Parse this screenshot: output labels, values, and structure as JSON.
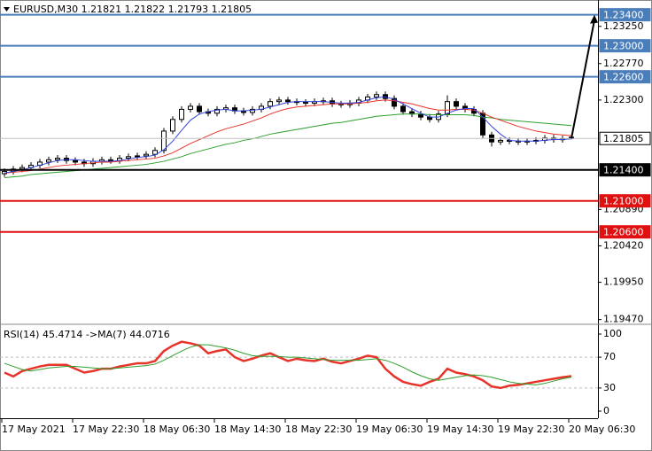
{
  "chart_data": [
    {
      "type": "candlestick",
      "title": "EURUSD,M30  1.21821 1.21822 1.21793 1.21805",
      "ylim": [
        1.1942,
        1.2359
      ],
      "yticks": [
        {
          "value": 1.2325,
          "label": "1.23250"
        },
        {
          "value": 1.2277,
          "label": "1.22770"
        },
        {
          "value": 1.223,
          "label": "1.22300"
        },
        {
          "value": 1.2089,
          "label": "1.20890"
        },
        {
          "value": 1.2042,
          "label": "1.20420"
        },
        {
          "value": 1.1995,
          "label": "1.19950"
        },
        {
          "value": 1.1947,
          "label": "1.19470"
        }
      ],
      "open": [
        1.2135,
        1.2138,
        1.2141,
        1.2143,
        1.2146,
        1.215,
        1.2153,
        1.2155,
        1.2152,
        1.215,
        1.2148,
        1.2151,
        1.2153,
        1.2152,
        1.2155,
        1.2157,
        1.2158,
        1.216,
        1.2165,
        1.219,
        1.2205,
        1.2218,
        1.2222,
        1.2215,
        1.2213,
        1.2218,
        1.222,
        1.2216,
        1.2214,
        1.2218,
        1.2222,
        1.2228,
        1.223,
        1.2228,
        1.2227,
        1.2226,
        1.2228,
        1.2229,
        1.2225,
        1.2224,
        1.2226,
        1.223,
        1.2234,
        1.2237,
        1.2232,
        1.2222,
        1.2215,
        1.2212,
        1.2208,
        1.2205,
        1.2212,
        1.2228,
        1.2222,
        1.2218,
        1.2213,
        1.2185,
        1.2176,
        1.2178,
        1.2177,
        1.2176,
        1.2177,
        1.2178,
        1.2181,
        1.2179,
        1.21821
      ],
      "high": [
        1.2142,
        1.2145,
        1.2147,
        1.215,
        1.2154,
        1.2157,
        1.2159,
        1.2159,
        1.2156,
        1.2154,
        1.2155,
        1.2157,
        1.2157,
        1.2159,
        1.2161,
        1.2162,
        1.2164,
        1.2169,
        1.2194,
        1.2209,
        1.2222,
        1.2226,
        1.2226,
        1.2219,
        1.2222,
        1.2224,
        1.2224,
        1.222,
        1.2222,
        1.2226,
        1.2232,
        1.2234,
        1.2234,
        1.2232,
        1.2231,
        1.2232,
        1.2233,
        1.2233,
        1.2229,
        1.223,
        1.2234,
        1.2238,
        1.2241,
        1.2241,
        1.2236,
        1.2226,
        1.2219,
        1.2216,
        1.2212,
        1.2216,
        1.2236,
        1.2232,
        1.2226,
        1.2222,
        1.2217,
        1.2189,
        1.2182,
        1.2182,
        1.2181,
        1.2181,
        1.2182,
        1.2185,
        1.2185,
        1.2184,
        1.21822
      ],
      "low": [
        1.2131,
        1.2134,
        1.2137,
        1.2139,
        1.2142,
        1.2146,
        1.2149,
        1.2148,
        1.2146,
        1.2144,
        1.2144,
        1.2147,
        1.2148,
        1.2148,
        1.2151,
        1.2153,
        1.2154,
        1.2156,
        1.2161,
        1.2186,
        1.2201,
        1.2214,
        1.2211,
        1.2209,
        1.2209,
        1.2214,
        1.2212,
        1.221,
        1.221,
        1.2214,
        1.2218,
        1.2224,
        1.2224,
        1.2223,
        1.2222,
        1.2222,
        1.2224,
        1.2221,
        1.222,
        1.222,
        1.2222,
        1.2226,
        1.223,
        1.2228,
        1.2218,
        1.2211,
        1.2208,
        1.2204,
        1.2201,
        1.2201,
        1.2208,
        1.2218,
        1.2214,
        1.2209,
        1.2181,
        1.217,
        1.2172,
        1.2173,
        1.2172,
        1.2172,
        1.2173,
        1.2174,
        1.2175,
        1.2175,
        1.21793
      ],
      "close": [
        1.2138,
        1.2141,
        1.2143,
        1.2146,
        1.215,
        1.2153,
        1.2155,
        1.2152,
        1.215,
        1.2148,
        1.2151,
        1.2153,
        1.2152,
        1.2155,
        1.2157,
        1.2158,
        1.216,
        1.2165,
        1.219,
        1.2205,
        1.2218,
        1.2222,
        1.2215,
        1.2213,
        1.2218,
        1.222,
        1.2216,
        1.2214,
        1.2218,
        1.2222,
        1.2228,
        1.223,
        1.2228,
        1.2227,
        1.2226,
        1.2228,
        1.2229,
        1.2225,
        1.2224,
        1.2226,
        1.223,
        1.2234,
        1.2237,
        1.2232,
        1.2222,
        1.2215,
        1.2212,
        1.2208,
        1.2205,
        1.2212,
        1.2228,
        1.2222,
        1.2218,
        1.2213,
        1.2185,
        1.2176,
        1.2178,
        1.2177,
        1.2176,
        1.2177,
        1.2178,
        1.2181,
        1.2179,
        1.218,
        1.21805
      ],
      "series": [
        {
          "color": "#2e9e2e",
          "values": [
            1.213,
            1.2131,
            1.2132,
            1.2134,
            1.2135,
            1.2136,
            1.2137,
            1.2138,
            1.2139,
            1.214,
            1.2141,
            1.2142,
            1.2143,
            1.2144,
            1.2145,
            1.2146,
            1.2147,
            1.2149,
            1.2151,
            1.2154,
            1.2157,
            1.2161,
            1.2164,
            1.2167,
            1.217,
            1.2173,
            1.2175,
            1.2178,
            1.218,
            1.2183,
            1.2186,
            1.2188,
            1.219,
            1.2192,
            1.2194,
            1.2196,
            1.2198,
            1.22,
            1.2201,
            1.2203,
            1.2205,
            1.2207,
            1.2209,
            1.221,
            1.2211,
            1.2212,
            1.2212,
            1.2212,
            1.2211,
            1.2211,
            1.2211,
            1.2211,
            1.2211,
            1.221,
            1.2208,
            1.2207,
            1.2205,
            1.2204,
            1.2203,
            1.2202,
            1.2201,
            1.22,
            1.2199,
            1.2198,
            1.2197
          ]
        },
        {
          "color": "#e8332a",
          "values": [
            1.2136,
            1.2137,
            1.2138,
            1.2139,
            1.2141,
            1.2143,
            1.2145,
            1.2146,
            1.2147,
            1.2148,
            1.2149,
            1.215,
            1.215,
            1.2151,
            1.2152,
            1.2153,
            1.2154,
            1.2155,
            1.2158,
            1.2162,
            1.2168,
            1.2174,
            1.2179,
            1.2184,
            1.2189,
            1.2193,
            1.2196,
            1.2199,
            1.2203,
            1.2207,
            1.2212,
            1.2216,
            1.2219,
            1.2221,
            1.2222,
            1.2223,
            1.2224,
            1.2225,
            1.2225,
            1.2225,
            1.2226,
            1.2227,
            1.2229,
            1.223,
            1.2229,
            1.2227,
            1.2225,
            1.2222,
            1.2219,
            1.2217,
            1.2217,
            1.2218,
            1.2218,
            1.2217,
            1.2213,
            1.2208,
            1.2204,
            1.22,
            1.2196,
            1.2193,
            1.219,
            1.2188,
            1.2186,
            1.2185,
            1.2184
          ]
        },
        {
          "color": "#3344dd",
          "values": [
            1.2136,
            1.2138,
            1.214,
            1.2143,
            1.2146,
            1.2149,
            1.2152,
            1.2153,
            1.2153,
            1.2152,
            1.2151,
            1.2151,
            1.2151,
            1.2152,
            1.2154,
            1.2156,
            1.2157,
            1.2159,
            1.2166,
            1.2177,
            1.2191,
            1.2204,
            1.2212,
            1.2215,
            1.2217,
            1.2218,
            1.2216,
            1.2216,
            1.2217,
            1.2218,
            1.2221,
            1.2224,
            1.2227,
            1.2228,
            1.2228,
            1.2228,
            1.2228,
            1.2227,
            1.2226,
            1.2226,
            1.2227,
            1.223,
            1.2233,
            1.2234,
            1.2231,
            1.2225,
            1.2219,
            1.2213,
            1.2208,
            1.2208,
            1.2213,
            1.2217,
            1.2219,
            1.2219,
            1.2208,
            1.2196,
            1.2186,
            1.2178,
            1.2177,
            1.2177,
            1.2177,
            1.2178,
            1.2179,
            1.2179,
            1.218
          ]
        }
      ],
      "levels": [
        {
          "value": 1.234,
          "label": "1.23400",
          "color": "#4a7ebb"
        },
        {
          "value": 1.23,
          "label": "1.23000",
          "color": "#4a7ebb"
        },
        {
          "value": 1.226,
          "label": "1.22600",
          "color": "#4a7ebb"
        },
        {
          "value": 1.21805,
          "label": "1.21805",
          "color": "#c0c0c0"
        },
        {
          "value": 1.214,
          "label": "1.21400",
          "color": "#000000"
        },
        {
          "value": 1.21,
          "label": "1.21000",
          "color": "#e01010"
        },
        {
          "value": 1.206,
          "label": "1.20600",
          "color": "#e01010"
        }
      ],
      "arrow": {
        "from": 1.21805,
        "to": 1.234
      }
    },
    {
      "type": "line",
      "title": "RSI(14) 45.4714  ->MA(7) 44.0716",
      "ylim": [
        -9.2,
        111.5
      ],
      "yticks": [
        100,
        70,
        30,
        0
      ],
      "levels": [
        70,
        30
      ],
      "categories": [
        "17 May 2021",
        null,
        null,
        null,
        null,
        null,
        null,
        null,
        "17 May 22:30",
        null,
        null,
        null,
        null,
        null,
        null,
        null,
        "18 May 06:30",
        null,
        null,
        null,
        null,
        null,
        null,
        null,
        "18 May 14:30",
        null,
        null,
        null,
        null,
        null,
        null,
        null,
        "18 May 22:30",
        null,
        null,
        null,
        null,
        null,
        null,
        null,
        "19 May 06:30",
        null,
        null,
        null,
        null,
        null,
        null,
        null,
        "19 May 14:30",
        null,
        null,
        null,
        null,
        null,
        null,
        null,
        "19 May 22:30",
        null,
        null,
        null,
        null,
        null,
        null,
        null,
        "20 May 06:30"
      ],
      "series": [
        {
          "color": "#e8332a",
          "width": 2.5,
          "values": [
            50,
            45,
            52,
            55,
            58,
            60,
            60,
            60,
            55,
            50,
            52,
            55,
            55,
            58,
            60,
            62,
            62,
            65,
            78,
            85,
            90,
            88,
            85,
            75,
            78,
            80,
            70,
            65,
            68,
            72,
            75,
            70,
            65,
            68,
            66,
            65,
            68,
            64,
            62,
            65,
            68,
            72,
            70,
            55,
            45,
            38,
            35,
            33,
            38,
            42,
            55,
            50,
            48,
            45,
            40,
            32,
            30,
            33,
            34,
            36,
            38,
            40,
            42,
            44,
            45.4714
          ]
        },
        {
          "color": "#2e9e2e",
          "width": 1,
          "values": [
            62,
            58,
            54,
            52,
            54,
            56,
            57,
            58,
            58,
            57,
            56,
            55,
            55,
            56,
            57,
            58,
            59,
            61,
            66,
            72,
            78,
            83,
            86,
            86,
            84,
            82,
            79,
            75,
            72,
            71,
            71,
            71,
            70,
            70,
            69,
            68,
            67,
            66,
            66,
            66,
            66,
            67,
            68,
            66,
            62,
            57,
            51,
            46,
            42,
            40,
            42,
            44,
            46,
            47,
            46,
            44,
            41,
            38,
            36,
            35,
            34,
            36,
            39,
            42,
            44.0716
          ]
        }
      ]
    }
  ]
}
